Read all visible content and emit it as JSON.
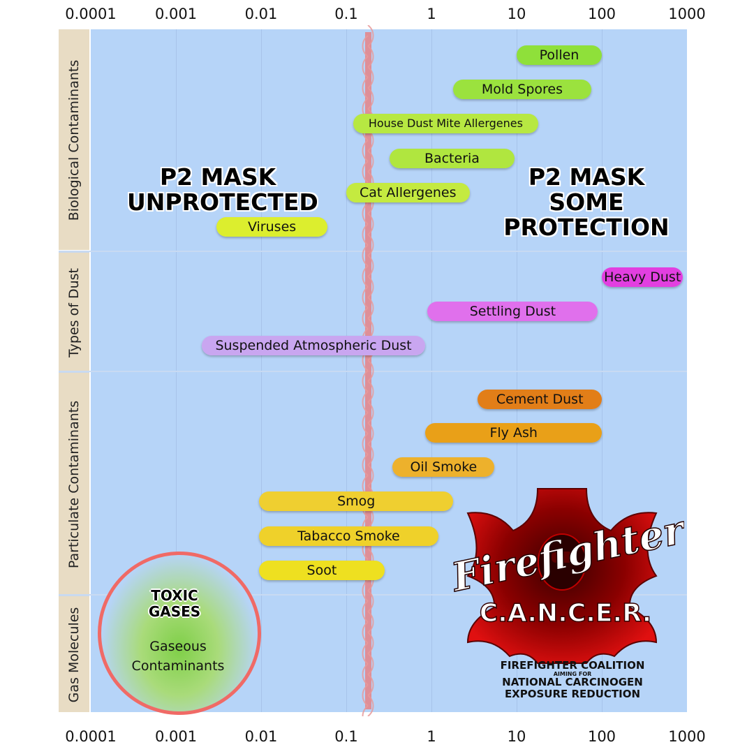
{
  "chart_data": {
    "type": "bar",
    "x_scale": "log",
    "x_ticks": [
      "0.0001",
      "0.001",
      "0.01",
      "0.1",
      "1",
      "10",
      "100",
      "1000"
    ],
    "xlim": [
      0.0001,
      1000
    ],
    "threshold_x": 0.18,
    "groups": [
      {
        "label": "Biological Contaminants",
        "items": 6
      },
      {
        "label": "Types of Dust",
        "items": 3
      },
      {
        "label": "Particulate Contaminants",
        "items": 6
      },
      {
        "label": "Gas Molecules",
        "items": 1
      }
    ],
    "series": [
      {
        "name": "Pollen",
        "x_min": 10,
        "x_max": 100,
        "color": "#8fe03a"
      },
      {
        "name": "Mold Spores",
        "x_min": 1.8,
        "x_max": 75,
        "color": "#9be23e"
      },
      {
        "name": "House Dust Mite Allergenes",
        "x_min": 0.12,
        "x_max": 18,
        "color": "#b7e842"
      },
      {
        "name": "Bacteria",
        "x_min": 0.32,
        "x_max": 9.5,
        "color": "#b0e63f"
      },
      {
        "name": "Cat Allergenes",
        "x_min": 0.1,
        "x_max": 2.8,
        "color": "#c4ea40"
      },
      {
        "name": "Viruses",
        "x_min": 0.003,
        "x_max": 0.06,
        "color": "#dcee2e"
      },
      {
        "name": "Heavy Dust",
        "x_min": 100,
        "x_max": 900,
        "color": "#e23fe0"
      },
      {
        "name": "Settling Dust",
        "x_min": 0.9,
        "x_max": 90,
        "color": "#e070ec"
      },
      {
        "name": "Suspended Atmospheric Dust",
        "x_min": 0.002,
        "x_max": 0.85,
        "color": "#c9a6f0"
      },
      {
        "name": "Cement Dust",
        "x_min": 3.5,
        "x_max": 100,
        "color": "#e27e18"
      },
      {
        "name": "Fly Ash",
        "x_min": 0.85,
        "x_max": 100,
        "color": "#e9a018"
      },
      {
        "name": "Oil Smoke",
        "x_min": 0.35,
        "x_max": 5.5,
        "color": "#edb12c"
      },
      {
        "name": "Smog",
        "x_min": 0.0095,
        "x_max": 1.8,
        "color": "#efcf30"
      },
      {
        "name": "Tabacco Smoke",
        "x_min": 0.0095,
        "x_max": 1.2,
        "color": "#efd12a"
      },
      {
        "name": "Soot",
        "x_min": 0.0095,
        "x_max": 0.28,
        "color": "#eee020"
      }
    ]
  },
  "labels": {
    "unprotected": "P2 MASK\nUNPROTECTED",
    "protected": "P2 MASK\nSOME PROTECTION",
    "toxic": "TOXIC\nGASES",
    "gaseous": "Gaseous\nContaminants"
  },
  "logo": {
    "script": "Firefighter",
    "acronym": "C.A.N.C.E.R.",
    "line1": "FIREFIGHTER COALITION",
    "line2": "AIMING FOR",
    "line3": "NATIONAL CARCINOGEN",
    "line4": "EXPOSURE REDUCTION"
  }
}
